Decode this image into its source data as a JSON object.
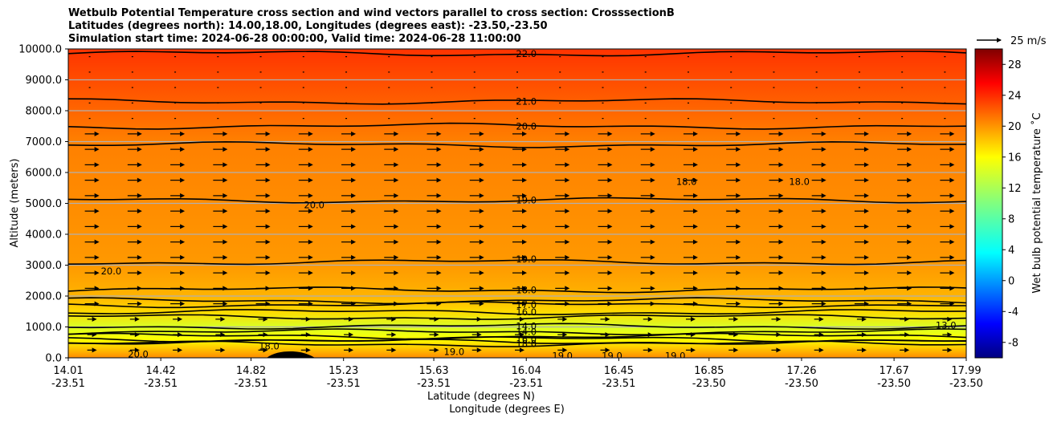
{
  "title_lines": [
    "Wetbulb Potential Temperature cross section and wind vectors parallel to cross section: CrosssectionB",
    "Latitudes (degrees north): 14.00,18.00, Longitudes (degrees east): -23.50,-23.50",
    "Simulation start time: 2024-06-28 00:00:00, Valid time: 2024-06-28 11:00:00"
  ],
  "chart_data": {
    "type": "heatmap",
    "title": "Wetbulb Potential Temperature cross section and wind vectors parallel to cross section: CrosssectionB",
    "ylabel": "Altitude (meters)",
    "xlabel_lines": [
      "Latitude (degrees N)",
      "Longitude (degrees E)"
    ],
    "ylim": [
      0,
      10000
    ],
    "y_ticks": [
      "0.0",
      "1000.0",
      "2000.0",
      "3000.0",
      "4000.0",
      "5000.0",
      "6000.0",
      "7000.0",
      "8000.0",
      "9000.0",
      "10000.0"
    ],
    "x_ticks": [
      {
        "lat": "14.01",
        "lon": "-23.51"
      },
      {
        "lat": "14.42",
        "lon": "-23.51"
      },
      {
        "lat": "14.82",
        "lon": "-23.51"
      },
      {
        "lat": "15.23",
        "lon": "-23.51"
      },
      {
        "lat": "15.63",
        "lon": "-23.51"
      },
      {
        "lat": "16.04",
        "lon": "-23.51"
      },
      {
        "lat": "16.45",
        "lon": "-23.51"
      },
      {
        "lat": "16.85",
        "lon": "-23.50"
      },
      {
        "lat": "17.26",
        "lon": "-23.50"
      },
      {
        "lat": "17.67",
        "lon": "-23.50"
      },
      {
        "lat": "17.99",
        "lon": "-23.50"
      }
    ],
    "xlim": [
      14.01,
      17.99
    ],
    "grid": true,
    "colorbar": {
      "label": "Wet bulb potential temperature ˚C",
      "ticks": [
        "-8",
        "-4",
        "0",
        "4",
        "8",
        "12",
        "16",
        "20",
        "24",
        "28"
      ],
      "range": [
        -10,
        30
      ],
      "colormap": "jet"
    },
    "wind_key": {
      "label": "25 m/s"
    },
    "approx_field_profile": [
      {
        "altitude": 0,
        "value": 19.5
      },
      {
        "altitude": 600,
        "value": 15.0
      },
      {
        "altitude": 1000,
        "value": 13.5
      },
      {
        "altitude": 1500,
        "value": 16.5
      },
      {
        "altitude": 2000,
        "value": 18.0
      },
      {
        "altitude": 3000,
        "value": 19.0
      },
      {
        "altitude": 5000,
        "value": 19.5
      },
      {
        "altitude": 7000,
        "value": 20.0
      },
      {
        "altitude": 8000,
        "value": 21.0
      },
      {
        "altitude": 9500,
        "value": 22.5
      },
      {
        "altitude": 10000,
        "value": 23.0
      }
    ],
    "contour_labels": [
      {
        "text": "22.0",
        "lat": 16.04,
        "altitude": 9850
      },
      {
        "text": "21.0",
        "lat": 16.04,
        "altitude": 8300
      },
      {
        "text": "20.0",
        "lat": 16.04,
        "altitude": 7500
      },
      {
        "text": "20.0",
        "lat": 15.1,
        "altitude": 4950
      },
      {
        "text": "19.0",
        "lat": 16.04,
        "altitude": 5100
      },
      {
        "text": "18.0",
        "lat": 16.75,
        "altitude": 5700
      },
      {
        "text": "18.0",
        "lat": 17.25,
        "altitude": 5700
      },
      {
        "text": "19.0",
        "lat": 16.04,
        "altitude": 3200
      },
      {
        "text": "20.0",
        "lat": 14.2,
        "altitude": 2800
      },
      {
        "text": "18.0",
        "lat": 16.04,
        "altitude": 2200
      },
      {
        "text": "17.0",
        "lat": 16.04,
        "altitude": 1720
      },
      {
        "text": "16.0",
        "lat": 16.04,
        "altitude": 1480
      },
      {
        "text": "14.0",
        "lat": 16.04,
        "altitude": 1020
      },
      {
        "text": "14.0",
        "lat": 16.04,
        "altitude": 840
      },
      {
        "text": "16.0",
        "lat": 16.04,
        "altitude": 600
      },
      {
        "text": "18.0",
        "lat": 16.04,
        "altitude": 450
      },
      {
        "text": "18.0",
        "lat": 14.9,
        "altitude": 380
      },
      {
        "text": "20.0",
        "lat": 14.32,
        "altitude": 120
      },
      {
        "text": "19.0",
        "lat": 15.72,
        "altitude": 200
      },
      {
        "text": "19.0",
        "lat": 16.2,
        "altitude": 60
      },
      {
        "text": "19.0",
        "lat": 16.42,
        "altitude": 60
      },
      {
        "text": "19.0",
        "lat": 16.7,
        "altitude": 60
      },
      {
        "text": "13.0",
        "lat": 17.9,
        "altitude": 1050
      }
    ]
  },
  "colors": {
    "band_cool": "#ccf23a",
    "band_warm_low": "#fba40a",
    "band_mid": "#fb8c08",
    "band_top": "#fc5e02"
  }
}
